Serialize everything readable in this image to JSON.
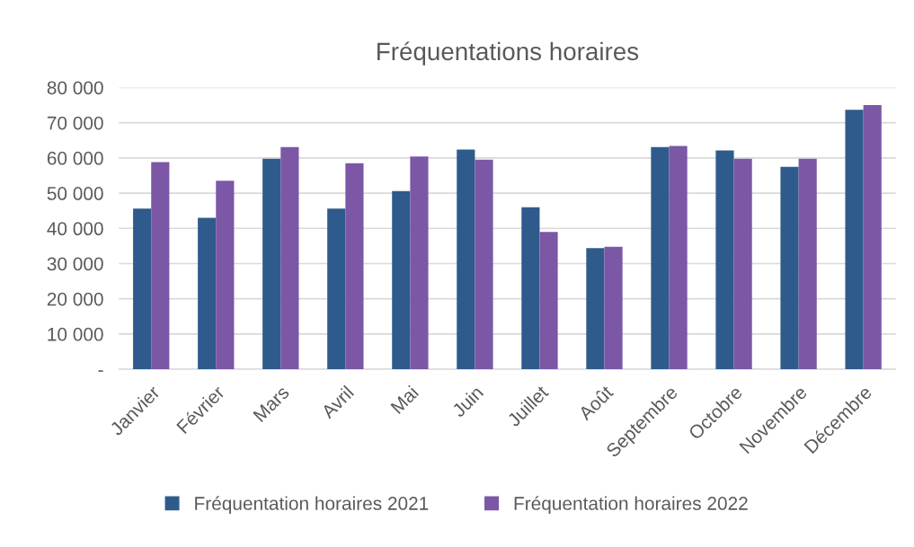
{
  "chart_data": {
    "type": "bar",
    "title": "Fréquentations horaires",
    "categories": [
      "Janvier",
      "Février",
      "Mars",
      "Avril",
      "Mai",
      "Juin",
      "Juillet",
      "Août",
      "Septembre",
      "Octobre",
      "Novembre",
      "Décembre"
    ],
    "series": [
      {
        "name": "Fréquentation horaires 2021",
        "color": "#2e5b8c",
        "values": [
          45600,
          43000,
          59800,
          45600,
          50600,
          62400,
          46000,
          34400,
          63100,
          62100,
          57500,
          73700
        ]
      },
      {
        "name": "Fréquentation horaires 2022",
        "color": "#7b57a6",
        "values": [
          58800,
          53500,
          63100,
          58500,
          60400,
          59500,
          39000,
          34800,
          63400,
          59800,
          59800,
          75000
        ]
      }
    ],
    "ylim": [
      0,
      80000
    ],
    "yticks": [
      {
        "value": 0,
        "label": "-"
      },
      {
        "value": 10000,
        "label": "10 000"
      },
      {
        "value": 20000,
        "label": "20 000"
      },
      {
        "value": 30000,
        "label": "30 000"
      },
      {
        "value": 40000,
        "label": "40 000"
      },
      {
        "value": 50000,
        "label": "50 000"
      },
      {
        "value": 60000,
        "label": "60 000"
      },
      {
        "value": 70000,
        "label": "70 000"
      },
      {
        "value": 80000,
        "label": "80 000"
      }
    ],
    "grid": "y",
    "legend": "bottom"
  }
}
